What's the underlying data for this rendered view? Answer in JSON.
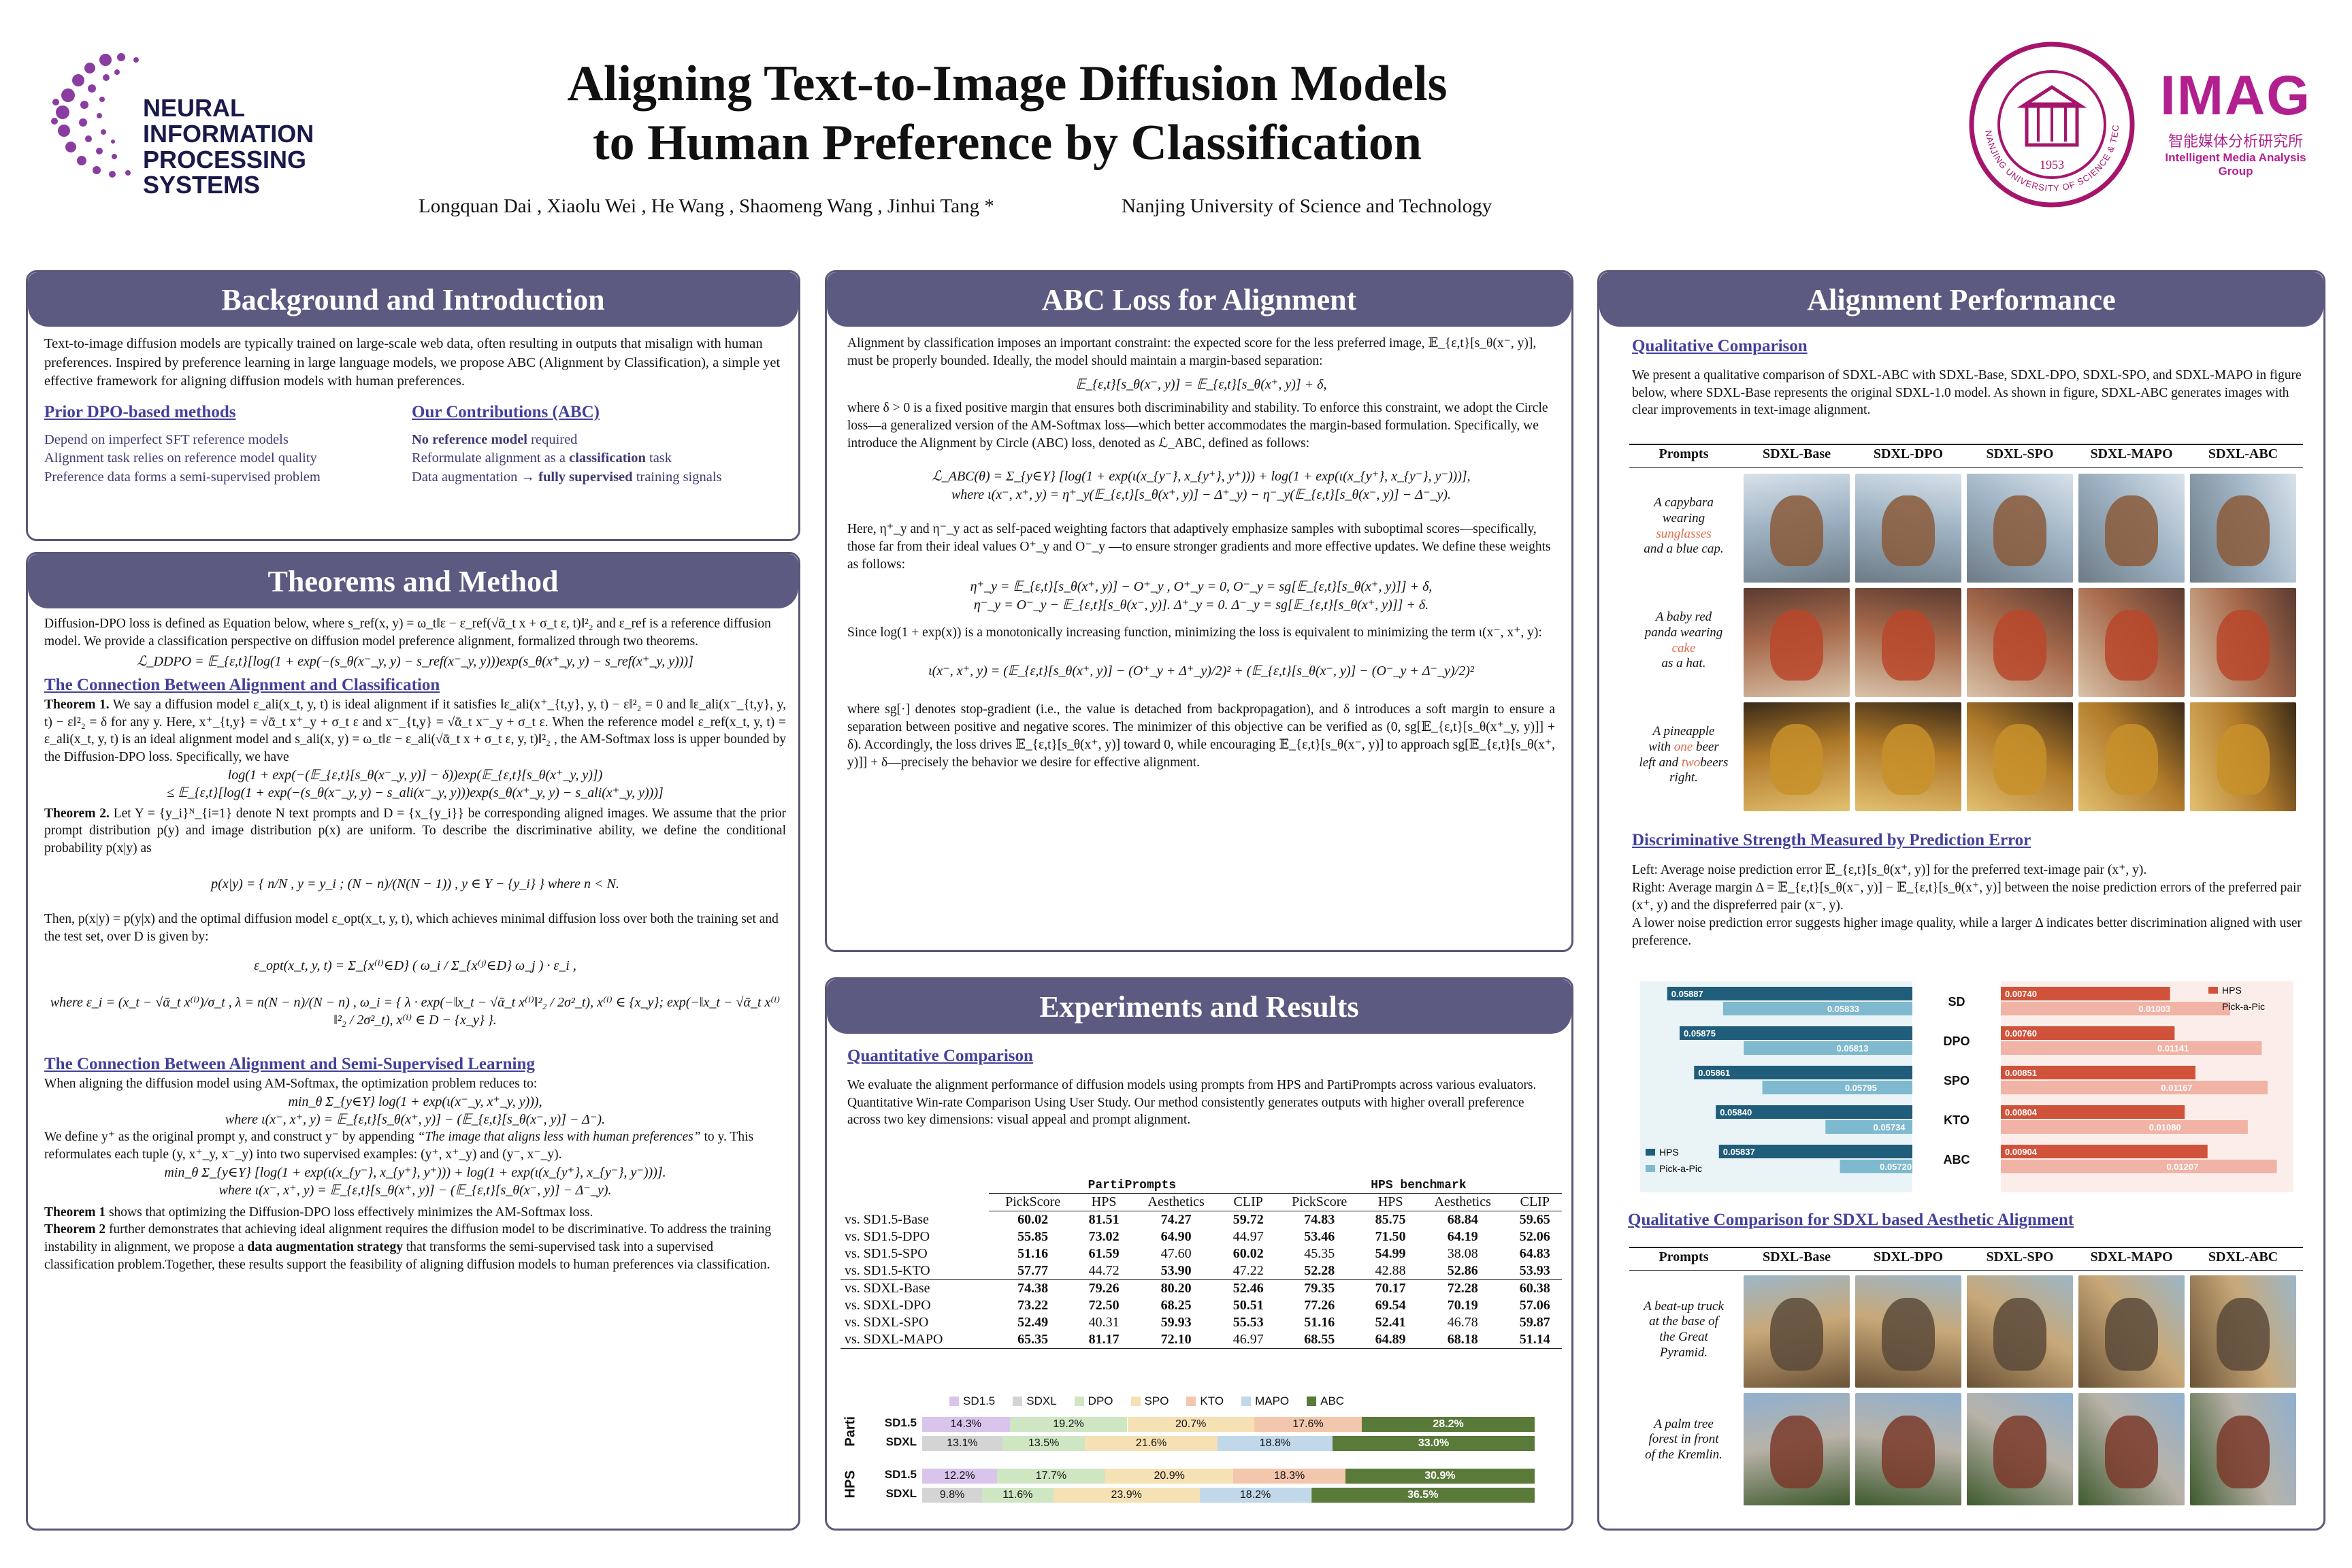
{
  "header": {
    "title_line1": "Aligning Text-to-Image Diffusion Models",
    "title_line2": "to Human Preference by Classification",
    "authors": "Longquan Dai , Xiaolu Wei , He Wang , Shaomeng Wang , Jinhui Tang *",
    "affiliation": "Nanjing University of Science and Technology",
    "neurips_line1": "NEURAL INFORMATION",
    "neurips_line2": "PROCESSING SYSTEMS",
    "imag_title": "IMAG",
    "imag_cn": "智能媒体分析研究所",
    "imag_en": "Intelligent Media Analysis Group",
    "njust_seal_text": "NANJING UNIVERSITY OF SCIENCE & TECHNOLOGY",
    "njust_year": "1953"
  },
  "background": {
    "title": "Background and Introduction",
    "intro": "Text-to-image diffusion models are typically trained on large-scale web data, often resulting in outputs that misalign with human preferences. Inspired by preference learning in large language models, we propose ABC (Alignment by Classification), a simple yet effective framework for aligning diffusion models with human preferences.",
    "prior_title": "Prior DPO-based methods",
    "prior_items": [
      "Depend on imperfect SFT reference models",
      "Alignment task relies on reference model quality",
      "Preference data forms a semi-supervised problem"
    ],
    "contrib_title": "Our Contributions (ABC)",
    "contrib_1a": "No reference model",
    "contrib_1b": " required",
    "contrib_2a": "Reformulate alignment as a ",
    "contrib_2b": "classification",
    "contrib_2c": " task",
    "contrib_3a": "Data augmentation → ",
    "contrib_3b": "fully supervised",
    "contrib_3c": " training signals"
  },
  "theorems": {
    "title": "Theorems and Method",
    "p1": "Diffusion-DPO loss is defined as Equation below, where s_ref(x, y) = ω_t‖ε − ε_ref(√ᾱ_t x + σ_t ε, t)‖²₂ and ε_ref is a reference diffusion model. We provide a classification perspective on diffusion model preference alignment, formalized through two theorems.",
    "eq1": "ℒ_DDPO = 𝔼_{ε,t}[log(1 + exp(−(s_θ(x⁻_y, y) − s_ref(x⁻_y, y)))exp(s_θ(x⁺_y, y) − s_ref(x⁺_y, y)))]",
    "sub1": "The Connection Between Alignment and Classification",
    "th1_label": "Theorem 1.",
    "th1": " We say a diffusion model ε_ali(x_t, y, t) is ideal alignment if it satisfies ‖ε_ali(x⁺_{t,y}, y, t) − ε‖²₂ = 0 and ‖ε_ali(x⁻_{t,y}, y, t) − ε‖²₂ = δ for any y. Here, x⁺_{t,y} = √ᾱ_t x⁺_y + σ_t ε and x⁻_{t,y} = √ᾱ_t x⁻_y + σ_t ε. When the reference model ε_ref(x_t, y, t) = ε_ali(x_t, y, t) is an ideal alignment model and s_ali(x, y) = ω_t‖ε − ε_ali(√ᾱ_t x + σ_t ε, y, t)‖²₂ , the AM-Softmax loss is upper bounded by the Diffusion-DPO loss. Specifically, we have",
    "eq2a": "log(1 + exp(−(𝔼_{ε,t}[s_θ(x⁻_y, y)] − δ))exp(𝔼_{ε,t}[s_θ(x⁺_y, y)])",
    "eq2b": "≤ 𝔼_{ε,t}[log(1 + exp(−(s_θ(x⁻_y, y) − s_ali(x⁻_y, y)))exp(s_θ(x⁺_y, y) − s_ali(x⁺_y, y)))]",
    "th2_label": "Theorem 2.",
    "th2": " Let Y = {y_i}ᴺ_{i=1} denote N text prompts and D = {x_{y_i}} be corresponding aligned images. We assume that the prior prompt distribution p(y) and image distribution p(x) are uniform. To describe the discriminative ability, we define the conditional probability p(x|y) as",
    "eq3": "p(x|y) = { n/N , y = y_i ;  (N − n)/(N(N − 1)) , y ∈ Y − {y_i} }   where n < N.",
    "p2": "Then, p(x|y) = p(y|x) and the optimal diffusion model ε_opt(x_t, y, t), which achieves minimal diffusion loss over both the training set and the test set, over D is given by:",
    "eq4": "ε_opt(x_t, y, t) = Σ_{x⁽ⁱ⁾∈D} ( ω_i / Σ_{x⁽ʲ⁾∈D} ω_j ) · ε_i ,",
    "eq5": "where ε_i = (x_t − √ᾱ_t x⁽ⁱ⁾)/σ_t ,  λ = n(N − n)/(N − n) ,  ω_i = { λ · exp(−‖x_t − √ᾱ_t x⁽ⁱ⁾‖²₂ / 2σ²_t), x⁽ⁱ⁾ ∈ {x_y};  exp(−‖x_t − √ᾱ_t x⁽ⁱ⁾‖²₂ / 2σ²_t), x⁽ⁱ⁾ ∈ D − {x_y} }.",
    "sub2": "The Connection Between Alignment and Semi-Supervised Learning",
    "p3": "When aligning the diffusion model using AM-Softmax, the optimization problem reduces to:",
    "eq6a": "min_θ Σ_{y∈Y} log(1 + exp(ι(x⁻_y, x⁺_y, y))),",
    "eq6b": "where ι(x⁻, x⁺, y) = 𝔼_{ε,t}[s_θ(x⁺, y)] − (𝔼_{ε,t}[s_θ(x⁻, y)] − Δ⁻).",
    "p4a": "We define y⁺ as the original prompt y, and construct y⁻ by appending ",
    "p4b": "“The image that aligns less with human preferences”",
    "p4c": " to y. This reformulates each tuple (y, x⁺_y, x⁻_y) into two supervised examples: (y⁺, x⁺_y) and (y⁻, x⁻_y).",
    "eq7a": "min_θ Σ_{y∈Y} [log(1 + exp(ι(x_{y⁻}, x_{y⁺}, y⁺))) + log(1 + exp(ι(x_{y⁺}, x_{y⁻}, y⁻)))].",
    "eq7b": "where ι(x⁻, x⁺, y) = 𝔼_{ε,t}[s_θ(x⁺, y)] − (𝔼_{ε,t}[s_θ(x⁻, y)] − Δ⁻_y).",
    "c1a": "Theorem 1",
    "c1b": " shows that optimizing the Diffusion-DPO loss effectively minimizes the AM-Softmax loss.",
    "c2a": "Theorem 2",
    "c2b": " further demonstrates that achieving ideal alignment requires the diffusion model to be discriminative. To address the training instability in alignment, we propose a ",
    "c2c": "data augmentation strategy",
    "c2d": " that transforms the semi-supervised task into a supervised classification problem.Together, these results support the feasibility of aligning diffusion models to human preferences via classification."
  },
  "abc": {
    "title": "ABC Loss for Alignment",
    "p1": "Alignment by classification imposes an important constraint: the expected score for the less preferred image, 𝔼_{ε,t}[s_θ(x⁻, y)], must be properly bounded. Ideally, the model should maintain a margin-based separation:",
    "eq1": "𝔼_{ε,t}[s_θ(x⁻, y)] = 𝔼_{ε,t}[s_θ(x⁺, y)] + δ,",
    "p2": "where δ > 0 is a fixed positive margin that ensures both discriminability and stability. To enforce this constraint, we adopt the Circle loss—a generalized version of the AM-Softmax loss—which better accommodates the margin-based formulation. Specifically, we introduce the Alignment by Circle (ABC) loss, denoted as ℒ_ABC, defined as follows:",
    "eq2a": "ℒ_ABC(θ) = Σ_{y∈Y} [log(1 + exp(ι(x_{y⁻}, x_{y⁺}, y⁺))) + log(1 + exp(ι(x_{y⁺}, x_{y⁻}, y⁻)))],",
    "eq2b": "where ι(x⁻, x⁺, y) = η⁺_y(𝔼_{ε,t}[s_θ(x⁺, y)] − Δ⁺_y) − η⁻_y(𝔼_{ε,t}[s_θ(x⁻, y)] − Δ⁻_y).",
    "p3": "Here, η⁺_y and η⁻_y act as self-paced weighting factors that adaptively emphasize samples with suboptimal scores—specifically, those far from their ideal values O⁺_y and O⁻_y —to ensure stronger gradients and more effective updates. We define these weights as follows:",
    "eq3a": "η⁺_y = 𝔼_{ε,t}[s_θ(x⁺, y)] − O⁺_y ,   O⁺_y = 0,   O⁻_y = sg[𝔼_{ε,t}[s_θ(x⁺, y)]] + δ,",
    "eq3b": "η⁻_y = O⁻_y − 𝔼_{ε,t}[s_θ(x⁻, y)].   Δ⁺_y = 0.   Δ⁻_y = sg[𝔼_{ε,t}[s_θ(x⁺, y)]] + δ.",
    "p4": "Since log(1 + exp(x)) is a monotonically increasing function, minimizing the loss is equivalent to minimizing the term ι(x⁻, x⁺, y):",
    "eq4": "ι(x⁻, x⁺, y) = (𝔼_{ε,t}[s_θ(x⁺, y)] − (O⁺_y + Δ⁺_y)/2)² + (𝔼_{ε,t}[s_θ(x⁻, y)] − (O⁻_y + Δ⁻_y)/2)²",
    "p5": "where sg[·] denotes stop-gradient (i.e., the value is detached from backpropagation), and δ introduces a soft margin to ensure a separation between positive and negative scores. The minimizer of this objective can be verified as (0, sg[𝔼_{ε,t}[s_θ(x⁺_y, y)]] + δ). Accordingly, the loss drives 𝔼_{ε,t}[s_θ(x⁺, y)] toward 0, while encouraging 𝔼_{ε,t}[s_θ(x⁻, y)] to approach sg[𝔼_{ε,t}[s_θ(x⁺, y)]] + δ—precisely the behavior we desire for effective alignment."
  },
  "experiments": {
    "title": "Experiments and Results",
    "sub": "Quantitative Comparison",
    "p1": "We evaluate the alignment performance of diffusion models using prompts from HPS and PartiPrompts across various evaluators.",
    "p2": "Quantitative Win-rate Comparison Using User Study. Our method consistently generates outputs with higher overall preference across two key dimensions: visual appeal and prompt alignment.",
    "group1": "PartiPrompts",
    "group2": "HPS benchmark",
    "cols": [
      "PickScore",
      "HPS",
      "Aesthetics",
      "CLIP",
      "PickScore",
      "HPS",
      "Aesthetics",
      "CLIP"
    ],
    "rows": [
      {
        "label": "vs. SD1.5-Base",
        "vals": [
          "60.02",
          "81.51",
          "74.27",
          "59.72",
          "74.83",
          "85.75",
          "68.84",
          "59.65"
        ]
      },
      {
        "label": "vs. SD1.5-DPO",
        "vals": [
          "55.85",
          "73.02",
          "64.90",
          "44.97",
          "53.46",
          "71.50",
          "64.19",
          "52.06"
        ]
      },
      {
        "label": "vs. SD1.5-SPO",
        "vals": [
          "51.16",
          "61.59",
          "47.60",
          "60.02",
          "45.35",
          "54.99",
          "38.08",
          "64.83"
        ]
      },
      {
        "label": "vs. SD1.5-KTO",
        "vals": [
          "57.77",
          "44.72",
          "53.90",
          "47.22",
          "52.28",
          "42.88",
          "52.86",
          "53.93"
        ]
      },
      {
        "label": "vs. SDXL-Base",
        "vals": [
          "74.38",
          "79.26",
          "80.20",
          "52.46",
          "79.35",
          "70.17",
          "72.28",
          "60.38"
        ]
      },
      {
        "label": "vs. SDXL-DPO",
        "vals": [
          "73.22",
          "72.50",
          "68.25",
          "50.51",
          "77.26",
          "69.54",
          "70.19",
          "57.06"
        ]
      },
      {
        "label": "vs. SDXL-SPO",
        "vals": [
          "52.49",
          "40.31",
          "59.93",
          "55.53",
          "51.16",
          "52.41",
          "46.78",
          "59.87"
        ]
      },
      {
        "label": "vs. SDXL-MAPO",
        "vals": [
          "65.35",
          "81.17",
          "72.10",
          "46.97",
          "68.55",
          "64.89",
          "68.18",
          "51.14"
        ]
      }
    ]
  },
  "winrate": {
    "legend": [
      "SD1.5",
      "SDXL",
      "DPO",
      "SPO",
      "KTO",
      "MAPO",
      "ABC"
    ],
    "colors": [
      "#d9c4ec",
      "#d4d4d4",
      "#cfe6c3",
      "#f6e1b5",
      "#f3c7ad",
      "#c1d8ea",
      "#5a7a3a"
    ],
    "groups": [
      {
        "name": "Parti",
        "rows": [
          {
            "label": "SD1.5",
            "segs": [
              {
                "k": 0,
                "v": 14.3,
                "t": "14.3%"
              },
              {
                "k": 2,
                "v": 19.2,
                "t": "19.2%"
              },
              {
                "k": 3,
                "v": 20.7,
                "t": "20.7%"
              },
              {
                "k": 4,
                "v": 17.6,
                "t": "17.6%"
              },
              {
                "k": 6,
                "v": 28.2,
                "t": "28.2%"
              }
            ]
          },
          {
            "label": "SDXL",
            "segs": [
              {
                "k": 1,
                "v": 13.1,
                "t": "13.1%"
              },
              {
                "k": 2,
                "v": 13.5,
                "t": "13.5%"
              },
              {
                "k": 3,
                "v": 21.6,
                "t": "21.6%"
              },
              {
                "k": 5,
                "v": 18.8,
                "t": "18.8%"
              },
              {
                "k": 6,
                "v": 33.0,
                "t": "33.0%"
              }
            ]
          }
        ]
      },
      {
        "name": "HPS",
        "rows": [
          {
            "label": "SD1.5",
            "segs": [
              {
                "k": 0,
                "v": 12.2,
                "t": "12.2%"
              },
              {
                "k": 2,
                "v": 17.7,
                "t": "17.7%"
              },
              {
                "k": 3,
                "v": 20.9,
                "t": "20.9%"
              },
              {
                "k": 4,
                "v": 18.3,
                "t": "18.3%"
              },
              {
                "k": 6,
                "v": 30.9,
                "t": "30.9%"
              }
            ]
          },
          {
            "label": "SDXL",
            "segs": [
              {
                "k": 1,
                "v": 9.8,
                "t": "9.8%"
              },
              {
                "k": 2,
                "v": 11.6,
                "t": "11.6%"
              },
              {
                "k": 3,
                "v": 23.9,
                "t": "23.9%"
              },
              {
                "k": 5,
                "v": 18.2,
                "t": "18.2%"
              },
              {
                "k": 6,
                "v": 36.5,
                "t": "36.5%"
              }
            ]
          }
        ]
      }
    ]
  },
  "alignment": {
    "title": "Alignment Performance",
    "sub1": "Qualitative Comparison",
    "p1": "We present a qualitative comparison of SDXL-ABC with  SDXL-Base, SDXL-DPO, SDXL-SPO, and SDXL-MAPO in figure below, where SDXL-Base represents the original SDXL-1.0 model. As shown in figure, SDXL-ABC generates images with clear improvements in text-image alignment.",
    "grid_headers": [
      "Prompts",
      "SDXL-Base",
      "SDXL-DPO",
      "SDXL-SPO",
      "SDXL-MAPO",
      "SDXL-ABC"
    ],
    "prompt1": [
      "A capybara",
      "wearing",
      "sunglasses",
      "and a blue cap."
    ],
    "prompt2": [
      "A baby red",
      "panda wearing",
      "cake",
      "as a hat."
    ],
    "prompt3": [
      "A pineapple",
      "with ",
      "one",
      " beer",
      "left and ",
      "two",
      "beers right."
    ],
    "sub2": "Discriminative Strength Measured by Prediction Error",
    "p2": "Left: Average noise prediction error 𝔼_{ε,t}[s_θ(x⁺, y)] for the preferred text-image pair (x⁺, y).",
    "p3": "Right: Average margin Δ = 𝔼_{ε,t}[s_θ(x⁻, y)] − 𝔼_{ε,t}[s_θ(x⁺, y)] between the noise prediction errors of the preferred pair (x⁺, y) and the dispreferred pair (x⁻, y).",
    "p4": "A lower noise prediction error suggests higher image quality, while a larger Δ indicates better discrimination aligned with user preference.",
    "sub3": "Qualitative Comparison for SDXL based Aesthetic Alignment",
    "prompt4": [
      "A beat-up truck",
      "at the base of",
      "the Great",
      "Pyramid."
    ],
    "prompt5": [
      "A palm tree",
      "forest in front",
      "of the Kremlin."
    ]
  },
  "chart_data": [
    {
      "type": "bar",
      "orientation": "horizontal",
      "categories": [
        "SD",
        "DPO",
        "SPO",
        "KTO",
        "ABC"
      ],
      "series": [
        {
          "name": "HPS",
          "values": [
            0.05887,
            0.05875,
            0.05861,
            0.0584,
            0.05837
          ]
        },
        {
          "name": "Pick-a-Pic",
          "values": [
            0.05833,
            0.05813,
            0.05795,
            0.05734,
            0.0572
          ]
        }
      ],
      "legend": "bottom-left"
    },
    {
      "type": "bar",
      "orientation": "horizontal",
      "categories": [
        "SD",
        "DPO",
        "SPO",
        "KTO",
        "ABC"
      ],
      "series": [
        {
          "name": "HPS",
          "values": [
            0.0074,
            0.0076,
            0.00851,
            0.00804,
            0.00904
          ]
        },
        {
          "name": "Pick-a-Pic",
          "values": [
            0.01003,
            0.01141,
            0.01167,
            0.0108,
            0.01207
          ]
        }
      ],
      "legend": "top-right"
    }
  ]
}
